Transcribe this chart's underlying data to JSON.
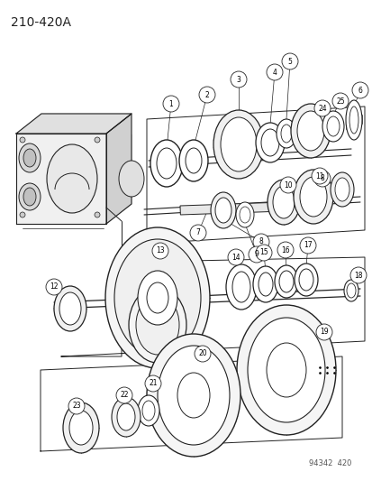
{
  "title": "210-420A",
  "watermark": "94342  420",
  "bg_color": "#ffffff",
  "lc": "#222222",
  "fig_width": 4.14,
  "fig_height": 5.33,
  "dpi": 100
}
